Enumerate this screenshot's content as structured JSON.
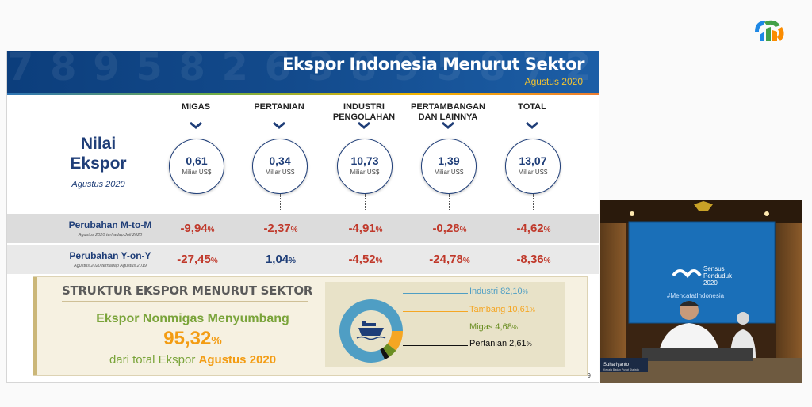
{
  "header": {
    "title": "Ekspor Indonesia Menurut Sektor",
    "subtitle": "Agustus 2020",
    "logo_icon": "bps-logo-icon",
    "deco_digits": "7  8  9  5  8  2  6  3  8  9  5  8  7  2  6"
  },
  "columns": [
    {
      "label1": "MIGAS",
      "label2": ""
    },
    {
      "label1": "PERTANIAN",
      "label2": ""
    },
    {
      "label1": "INDUSTRI",
      "label2": "PENGOLAHAN"
    },
    {
      "label1": "PERTAMBANGAN",
      "label2": "DAN LAINNYA"
    },
    {
      "label1": "TOTAL",
      "label2": ""
    }
  ],
  "nilai": {
    "line1": "Nilai",
    "line2": "Ekspor",
    "sub": "Agustus 2020",
    "unit": "Miliar US$",
    "values": [
      "0,61",
      "0,34",
      "10,73",
      "1,39",
      "13,07"
    ]
  },
  "mtom": {
    "label": "Perubahan M-to-M",
    "sub": "Agustus 2020 terhadap Juli 2020",
    "values": [
      "-9,94",
      "-2,37",
      "-4,91",
      "-0,28",
      "-4,62"
    ]
  },
  "yony": {
    "label": "Perubahan Y-on-Y",
    "sub": "Agustus 2020 terhadap Agustus 2019",
    "values": [
      "-27,45",
      "1,04",
      "-4,52",
      "-24,78",
      "-8,36"
    ]
  },
  "percent_sign": "%",
  "struktur": {
    "heading": "STRUKTUR EKSPOR MENURUT SEKTOR",
    "line1": "Ekspor Nonmigas Menyumbang",
    "big_value": "95,32",
    "line3_prefix": "dari total Ekspor",
    "line3_highlight": "Agustus 2020",
    "legend": [
      {
        "label": "Industri 82,10",
        "value": 82.1,
        "color": "#4f9ec4"
      },
      {
        "label": "Tambang 10,61",
        "value": 10.61,
        "color": "#f5a623"
      },
      {
        "label": "Migas 4,68",
        "value": 4.68,
        "color": "#6b8e23"
      },
      {
        "label": "Pertanian 2,61",
        "value": 2.61,
        "color": "#111111"
      }
    ],
    "center_icon": "cargo-ship-icon"
  },
  "page_number": "9",
  "video": {
    "backdrop_line1": "Sensus",
    "backdrop_line2": "Penduduk",
    "backdrop_line3": "2020",
    "hashtag": "#MencatatIndonesia",
    "nameplate": "Suhariyanto",
    "nameplate_sub": "Kepala Badan Pusat Statistik"
  }
}
